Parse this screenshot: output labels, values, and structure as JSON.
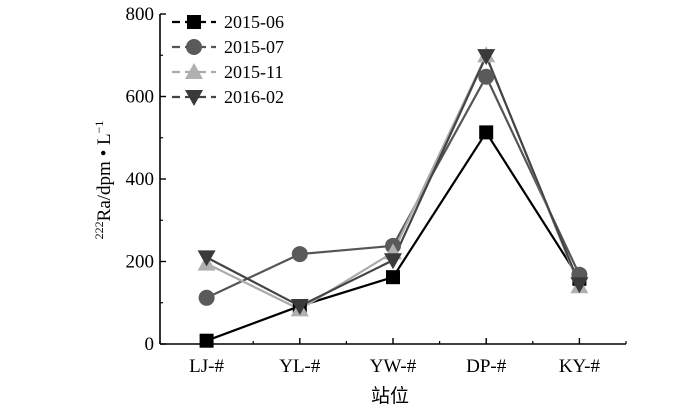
{
  "chart_data": {
    "type": "line",
    "categories": [
      "LJ-#",
      "YL-#",
      "YW-#",
      "DP-#",
      "KY-#"
    ],
    "xlabel": "站位",
    "ylabel": {
      "sup": "222",
      "main": "Ra/dpm • L",
      "unit_sup": "−1"
    },
    "ylim": [
      0,
      800
    ],
    "yticks": [
      0,
      200,
      400,
      600,
      800
    ],
    "grid": false,
    "legend_position": "top-left",
    "series": [
      {
        "name": "2015-06",
        "marker": "square",
        "line_color": "#000000",
        "marker_color": "#000000",
        "values": [
          8,
          92,
          162,
          513,
          158
        ]
      },
      {
        "name": "2015-07",
        "marker": "circle",
        "line_color": "#555555",
        "marker_color": "#5a5a5a",
        "values": [
          112,
          218,
          238,
          648,
          168
        ]
      },
      {
        "name": "2015-11",
        "marker": "triangle-up",
        "line_color": "#aaaaaa",
        "marker_color": "#b0b0b0",
        "values": [
          195,
          84,
          222,
          700,
          140
        ]
      },
      {
        "name": "2016-02",
        "marker": "triangle-down",
        "line_color": "#444444",
        "marker_color": "#3a3a3a",
        "values": [
          210,
          92,
          203,
          698,
          145
        ]
      }
    ]
  }
}
